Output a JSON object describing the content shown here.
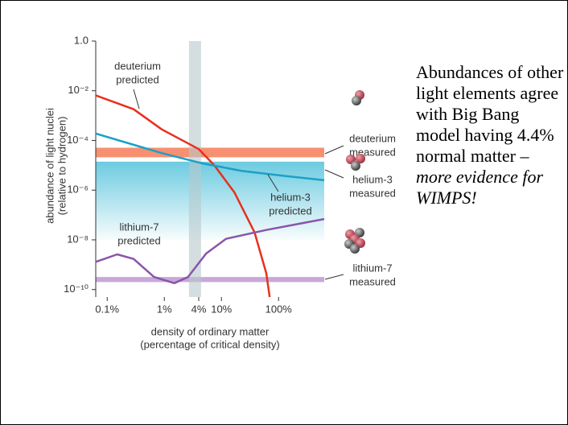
{
  "chart_data": {
    "type": "line",
    "xscale": "log",
    "yscale": "log",
    "x_label": [
      "density of ordinary matter",
      "(percentage of critical density)"
    ],
    "y_label": [
      "abundance of light nuclei",
      "(relative to hydrogen)"
    ],
    "xlim": [
      0.063,
      630
    ],
    "ylim": [
      5e-11,
      1
    ],
    "xticks": [
      {
        "value": 0.1,
        "label": "0.1%"
      },
      {
        "value": 1,
        "label": "1%"
      },
      {
        "value": 4,
        "label": "4%"
      },
      {
        "value": 10,
        "label": "10%"
      },
      {
        "value": 100,
        "label": "100%"
      }
    ],
    "yticks": [
      {
        "value": 1,
        "label": "1.0"
      },
      {
        "value": 0.01,
        "label": "10⁻²"
      },
      {
        "value": 0.0001,
        "label": "10⁻⁴"
      },
      {
        "value": 1e-06,
        "label": "10⁻⁶"
      },
      {
        "value": 1e-08,
        "label": "10⁻⁸"
      },
      {
        "value": 1e-10,
        "label": "10⁻¹⁰"
      }
    ],
    "series": [
      {
        "label": [
          "deuterium",
          "predicted"
        ],
        "color": "#e8301c",
        "x": [
          0.063,
          0.29,
          0.9,
          4,
          7.5,
          17,
          38,
          61,
          70
        ],
        "values": [
          0.0065,
          0.0018,
          0.00028,
          4.5e-05,
          1e-05,
          7.9e-07,
          2e-08,
          4.5e-10,
          5e-11
        ]
      },
      {
        "label": [
          "helium-3",
          "predicted"
        ],
        "color": "#1aa0c8",
        "x": [
          0.063,
          0.25,
          0.9,
          4.6,
          23,
          117,
          630
        ],
        "values": [
          0.00019,
          7.4e-05,
          3.1e-05,
          1.2e-05,
          5.9e-06,
          3.8e-06,
          2.5e-06
        ]
      },
      {
        "label": [
          "lithium-7",
          "predicted"
        ],
        "color": "#8a55a8",
        "x": [
          0.063,
          0.15,
          0.29,
          0.66,
          1.5,
          2.6,
          5.4,
          12,
          61,
          630
        ],
        "values": [
          1.3e-09,
          2.6e-09,
          1.7e-09,
          3.2e-10,
          1.8e-10,
          3.2e-10,
          2.8e-09,
          1.1e-08,
          2.5e-08,
          6.9e-08
        ]
      }
    ],
    "bands": [
      {
        "axis": "y",
        "label": [
          "deuterium",
          "measured"
        ],
        "color": "#f79070",
        "range": [
          2.1e-05,
          5.1e-05
        ]
      },
      {
        "axis": "y",
        "label": [
          "helium-3",
          "measured"
        ],
        "color": "#6ccbe0",
        "range": [
          1e-08,
          1.4e-05
        ]
      },
      {
        "axis": "y",
        "label": [
          "lithium-7",
          "measured"
        ],
        "color": "#c9a8d8",
        "range": [
          2e-10,
          3.2e-10
        ]
      },
      {
        "axis": "x",
        "color": "#b8c8cc",
        "range": [
          2.7,
          4.4
        ]
      }
    ]
  },
  "note": {
    "text": "Abundances of other light elements agree with Big Bang model having 4.4% normal matter – ",
    "emphasis": "more evidence for WIMPS!"
  }
}
